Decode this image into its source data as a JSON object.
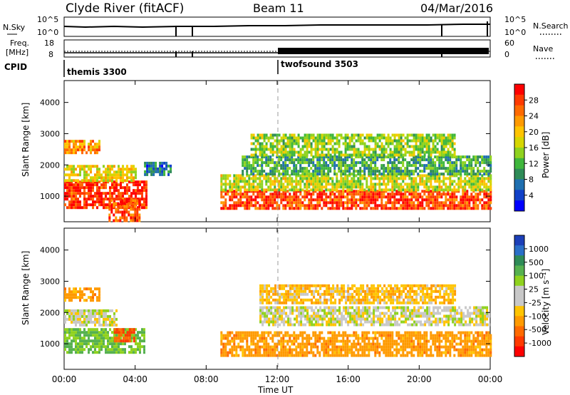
{
  "header": {
    "station": "Clyde River (fitACF)",
    "beam": "Beam 11",
    "date": "04/Mar/2016"
  },
  "panels": {
    "nsky": {
      "left_label": "N.Sky",
      "right_label": "N.Search",
      "left_ticks": [
        "10^5",
        "10^0"
      ],
      "right_ticks": [
        "10^5",
        "10^0"
      ]
    },
    "freq": {
      "left_label_1": "Freq.",
      "left_label_2": "[MHz]",
      "right_label": "Nave",
      "left_ticks": [
        "18",
        "8"
      ],
      "right_ticks": [
        "60",
        "0"
      ]
    },
    "cpid": {
      "label": "CPID",
      "modes": [
        {
          "name": "themis 3300",
          "start_hour": 0
        },
        {
          "name": "twofsound 3503",
          "start_hour": 12
        }
      ]
    }
  },
  "colorbars": {
    "power": {
      "label": "Power [dB]",
      "ticks": [
        "28",
        "24",
        "20",
        "16",
        "12",
        "8",
        "4"
      ],
      "colors": [
        "#ff0000",
        "#ff3a00",
        "#ff6a00",
        "#ff9a00",
        "#ffc400",
        "#d6d600",
        "#8fd21e",
        "#3fb63c",
        "#2e8b57",
        "#1f6fb0",
        "#1040c8",
        "#0000ff"
      ]
    },
    "velocity": {
      "label": "Velocity [m s⁻¹]",
      "ticks": [
        "1000",
        "500",
        "100",
        "25",
        "-25",
        "-100",
        "-500",
        "-1000"
      ],
      "colors": [
        "#1c3fb8",
        "#2a6fc8",
        "#2e8b57",
        "#56b14f",
        "#8fd21e",
        "#c8c8c8",
        "#c8c8c8",
        "#ffc400",
        "#ff9a00",
        "#ff6a00",
        "#ff3a00",
        "#ff0000"
      ]
    }
  },
  "chart_data": [
    {
      "type": "heatmap",
      "title": "Power",
      "xlabel": "Time UT",
      "ylabel": "Slant Range [km]",
      "x_ticks": [
        "00:00",
        "04:00",
        "08:00",
        "12:00",
        "16:00",
        "20:00",
        "00:00"
      ],
      "y_ticks": [
        "1000",
        "2000",
        "3000",
        "4000"
      ],
      "xlim_hours": [
        0,
        24
      ],
      "ylim_km": [
        180,
        4700
      ],
      "regions": [
        {
          "t": [
            0.0,
            4.6
          ],
          "r": [
            650,
            1500
          ],
          "value_db": 28
        },
        {
          "t": [
            0.0,
            4.0
          ],
          "r": [
            1500,
            2000
          ],
          "value_db": 18
        },
        {
          "t": [
            0.0,
            2.0
          ],
          "r": [
            2350,
            2800
          ],
          "value_db": 22
        },
        {
          "t": [
            2.5,
            4.3
          ],
          "r": [
            250,
            900
          ],
          "value_db": 26
        },
        {
          "t": [
            4.5,
            6.0
          ],
          "r": [
            1700,
            2100
          ],
          "value_db": 6
        },
        {
          "t": [
            8.8,
            24.0
          ],
          "r": [
            600,
            1200
          ],
          "value_db": 27
        },
        {
          "t": [
            8.8,
            24.0
          ],
          "r": [
            1200,
            1700
          ],
          "value_db": 16
        },
        {
          "t": [
            10.0,
            24.0
          ],
          "r": [
            1700,
            2300
          ],
          "value_db": 10
        },
        {
          "t": [
            10.5,
            22.0
          ],
          "r": [
            2300,
            3000
          ],
          "value_db": 14
        }
      ]
    },
    {
      "type": "heatmap",
      "title": "Velocity",
      "xlabel": "Time UT",
      "ylabel": "Slant Range [km]",
      "x_ticks": [
        "00:00",
        "04:00",
        "08:00",
        "12:00",
        "16:00",
        "20:00",
        "00:00"
      ],
      "y_ticks": [
        "1000",
        "2000",
        "3000",
        "4000"
      ],
      "xlim_hours": [
        0,
        24
      ],
      "ylim_km": [
        180,
        4700
      ],
      "regions": [
        {
          "t": [
            0.0,
            4.5
          ],
          "r": [
            700,
            1500
          ],
          "value_ms": 200
        },
        {
          "t": [
            0.0,
            3.0
          ],
          "r": [
            1600,
            2100
          ],
          "value_ms": 0
        },
        {
          "t": [
            0.0,
            2.0
          ],
          "r": [
            2400,
            2800
          ],
          "value_ms": -300
        },
        {
          "t": [
            2.8,
            4.0
          ],
          "r": [
            1100,
            1500
          ],
          "value_ms": -600
        },
        {
          "t": [
            8.8,
            24.0
          ],
          "r": [
            600,
            1400
          ],
          "value_ms": -300
        },
        {
          "t": [
            11.0,
            24.0
          ],
          "r": [
            1600,
            2200
          ],
          "value_ms": 0
        },
        {
          "t": [
            11.0,
            22.0
          ],
          "r": [
            2300,
            2900
          ],
          "value_ms": -150
        }
      ]
    }
  ]
}
